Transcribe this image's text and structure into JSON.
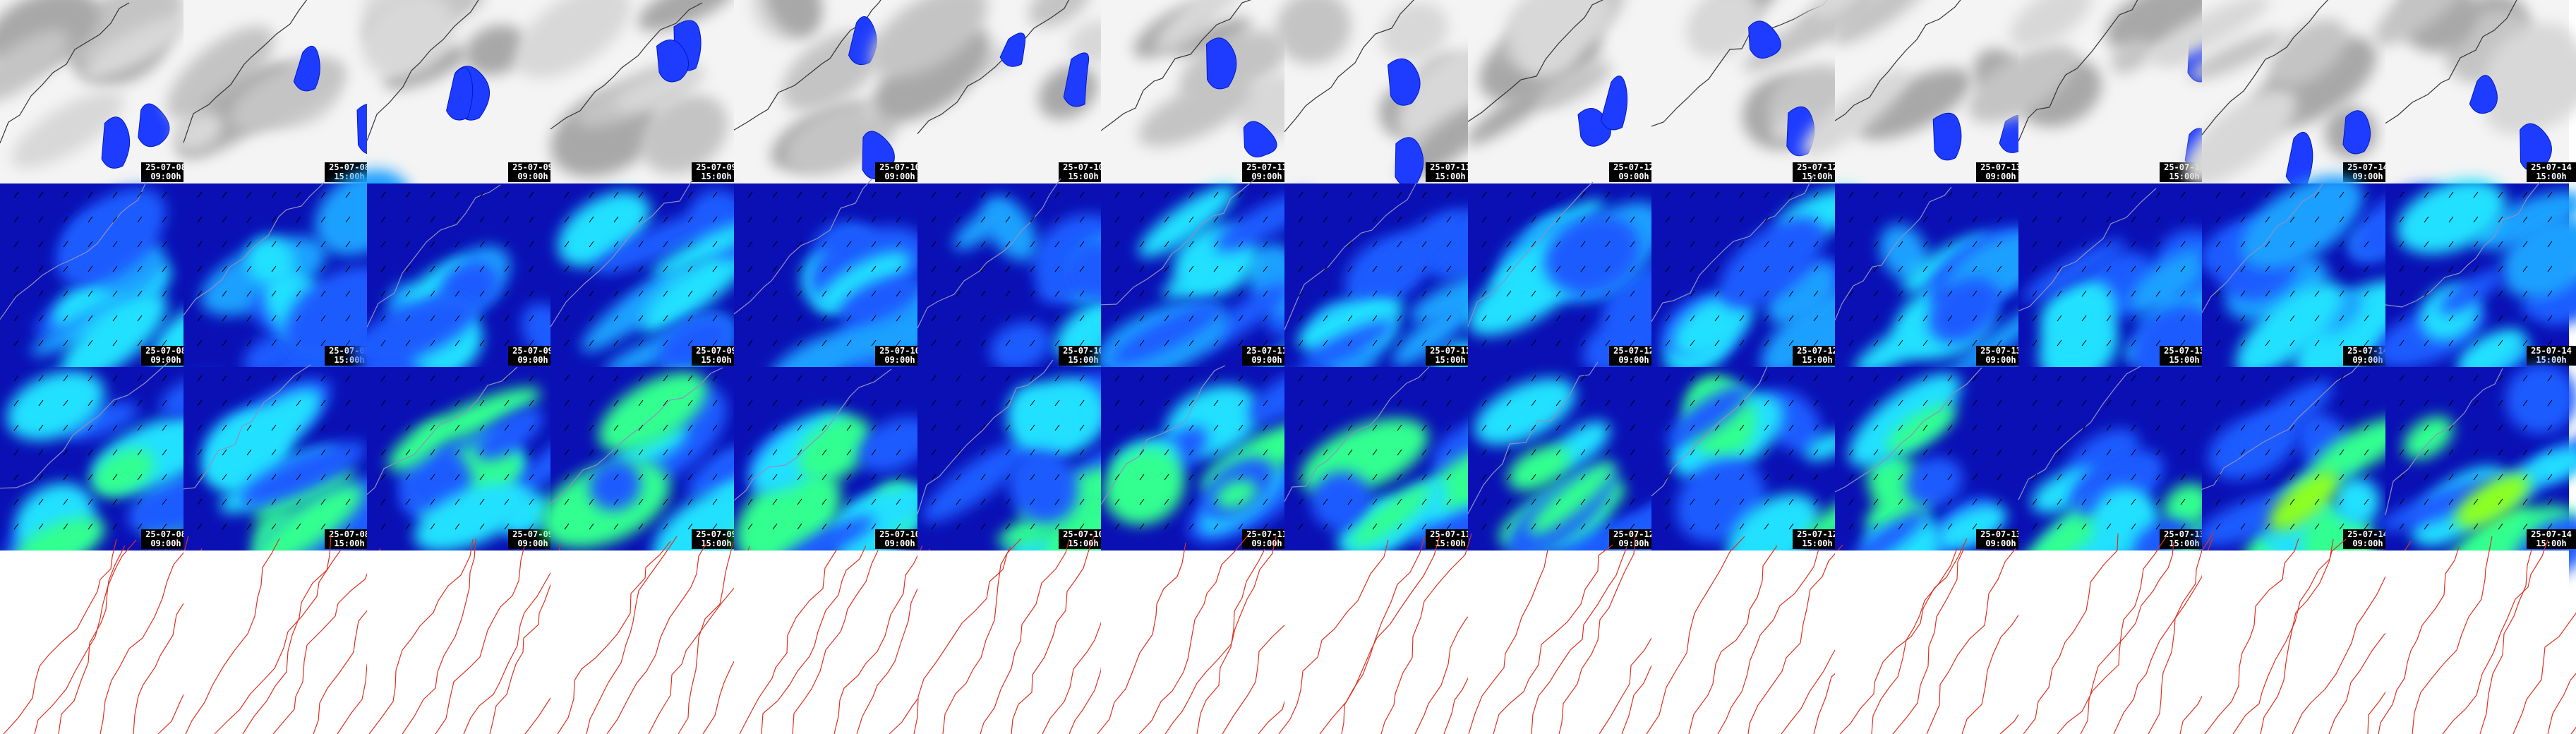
{
  "timestamps": [
    {
      "date": "25-07-08",
      "time": "09:00h"
    },
    {
      "date": "25-07-08",
      "time": "15:00h"
    },
    {
      "date": "25-07-09",
      "time": "09:00h"
    },
    {
      "date": "25-07-09",
      "time": "15:00h"
    },
    {
      "date": "25-07-10",
      "time": "09:00h"
    },
    {
      "date": "25-07-10",
      "time": "15:00h"
    },
    {
      "date": "25-07-11",
      "time": "09:00h"
    },
    {
      "date": "25-07-11",
      "time": "15:00h"
    },
    {
      "date": "25-07-12",
      "time": "09:00h"
    },
    {
      "date": "25-07-12",
      "time": "15:00h"
    },
    {
      "date": "25-07-13",
      "time": "09:00h"
    },
    {
      "date": "25-07-13",
      "time": "15:00h"
    },
    {
      "date": "25-07-14",
      "time": "09:00h"
    },
    {
      "date": "25-07-14",
      "time": "15:00h"
    }
  ]
}
